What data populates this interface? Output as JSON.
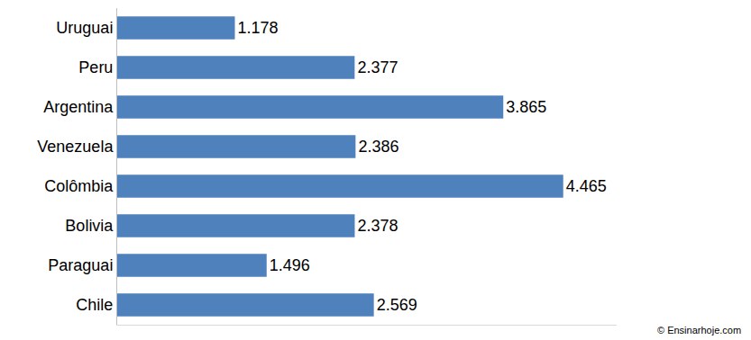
{
  "chart_data": {
    "type": "bar",
    "orientation": "horizontal",
    "categories": [
      "Uruguai",
      "Peru",
      "Argentina",
      "Venezuela",
      "Colômbia",
      "Bolivia",
      "Paraguai",
      "Chile"
    ],
    "values": [
      1178,
      2377,
      3865,
      2386,
      4465,
      2378,
      1496,
      2569
    ],
    "value_labels": [
      "1.178",
      "2.377",
      "3.865",
      "2.386",
      "4.465",
      "2.378",
      "1.496",
      "2.569"
    ],
    "data_labels": true,
    "color": "#4f81bd",
    "xlim": [
      0,
      5000
    ],
    "tick_labels": "y",
    "grid": false,
    "annotations": [
      "© Ensinarhoje.com"
    ]
  }
}
